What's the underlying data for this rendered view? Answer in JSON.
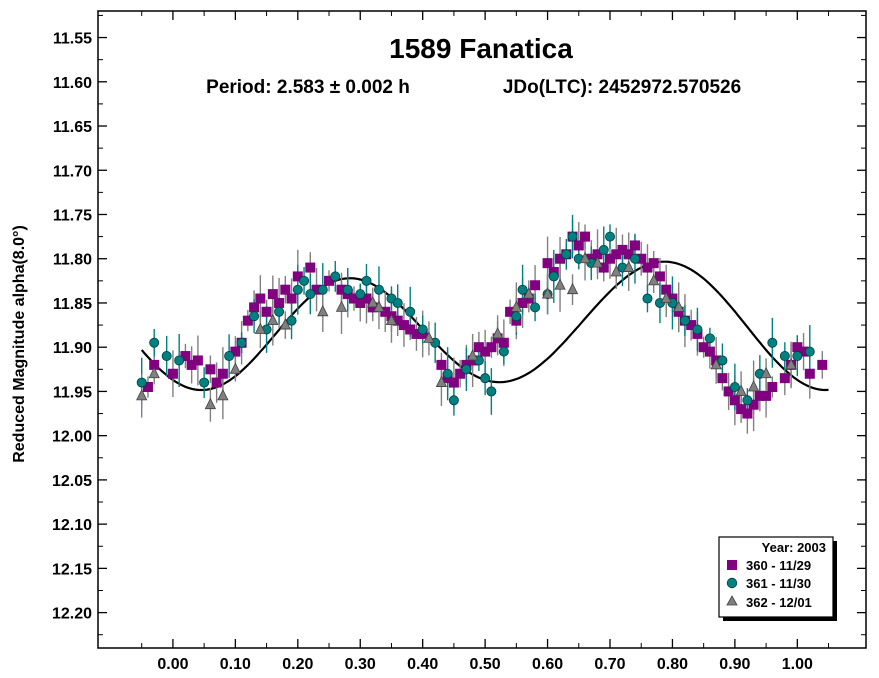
{
  "chart_data": {
    "type": "scatter",
    "title": "1589 Fanatica",
    "subtitle_period": "Period: 2.583 ± 0.002 h",
    "subtitle_epoch": "JDo(LTC): 2452972.570526",
    "xlabel": "",
    "ylabel": "Reduced Magnitude alpha(8.0°)",
    "xlim": [
      -0.12,
      1.11
    ],
    "ylim": [
      11.52,
      12.24
    ],
    "y_inverted": true,
    "x_ticks": [
      "0.00",
      "0.10",
      "0.20",
      "0.30",
      "0.40",
      "0.50",
      "0.60",
      "0.70",
      "0.80",
      "0.90",
      "1.00"
    ],
    "y_ticks": [
      "11.55",
      "11.60",
      "11.65",
      "11.70",
      "11.75",
      "11.80",
      "11.85",
      "11.90",
      "11.95",
      "12.00",
      "12.05",
      "12.10",
      "12.15",
      "12.20"
    ],
    "legend_title": "Year: 2003",
    "legend_position": "bottom-right",
    "fit_curve": {
      "mean": 11.878,
      "harmonics": [
        {
          "n": 1,
          "cos": 0.0,
          "sin": 0.012
        },
        {
          "n": 2,
          "cos": 0.059,
          "sin": 0.028
        },
        {
          "n": 3,
          "cos": 0.0,
          "sin": 0.003
        }
      ]
    },
    "series": [
      {
        "name": "360 - 11/29",
        "marker": "square",
        "color": "#800080",
        "error_color": "#808080",
        "points": [
          [
            -0.04,
            11.945
          ],
          [
            -0.03,
            11.92
          ],
          [
            0.0,
            11.93
          ],
          [
            0.02,
            11.91
          ],
          [
            0.03,
            11.92
          ],
          [
            0.04,
            11.915
          ],
          [
            0.06,
            11.925
          ],
          [
            0.07,
            11.94
          ],
          [
            0.08,
            11.93
          ],
          [
            0.1,
            11.905
          ],
          [
            0.11,
            11.895
          ],
          [
            0.12,
            11.87
          ],
          [
            0.13,
            11.855
          ],
          [
            0.14,
            11.845
          ],
          [
            0.15,
            11.86
          ],
          [
            0.16,
            11.84
          ],
          [
            0.17,
            11.85
          ],
          [
            0.18,
            11.835
          ],
          [
            0.19,
            11.845
          ],
          [
            0.2,
            11.82
          ],
          [
            0.22,
            11.81
          ],
          [
            0.23,
            11.835
          ],
          [
            0.25,
            11.825
          ],
          [
            0.27,
            11.835
          ],
          [
            0.28,
            11.84
          ],
          [
            0.29,
            11.845
          ],
          [
            0.3,
            11.85
          ],
          [
            0.31,
            11.845
          ],
          [
            0.32,
            11.855
          ],
          [
            0.34,
            11.86
          ],
          [
            0.35,
            11.865
          ],
          [
            0.36,
            11.87
          ],
          [
            0.37,
            11.875
          ],
          [
            0.38,
            11.88
          ],
          [
            0.39,
            11.885
          ],
          [
            0.4,
            11.885
          ],
          [
            0.43,
            11.92
          ],
          [
            0.44,
            11.935
          ],
          [
            0.45,
            11.94
          ],
          [
            0.46,
            11.93
          ],
          [
            0.47,
            11.92
          ],
          [
            0.48,
            11.915
          ],
          [
            0.49,
            11.9
          ],
          [
            0.5,
            11.905
          ],
          [
            0.51,
            11.9
          ],
          [
            0.52,
            11.89
          ],
          [
            0.53,
            11.895
          ],
          [
            0.54,
            11.86
          ],
          [
            0.55,
            11.87
          ],
          [
            0.56,
            11.85
          ],
          [
            0.57,
            11.845
          ],
          [
            0.58,
            11.83
          ],
          [
            0.6,
            11.805
          ],
          [
            0.61,
            11.815
          ],
          [
            0.62,
            11.8
          ],
          [
            0.63,
            11.795
          ],
          [
            0.64,
            11.775
          ],
          [
            0.65,
            11.785
          ],
          [
            0.66,
            11.775
          ],
          [
            0.67,
            11.8
          ],
          [
            0.68,
            11.795
          ],
          [
            0.69,
            11.81
          ],
          [
            0.7,
            11.8
          ],
          [
            0.71,
            11.795
          ],
          [
            0.72,
            11.79
          ],
          [
            0.73,
            11.795
          ],
          [
            0.74,
            11.785
          ],
          [
            0.75,
            11.8
          ],
          [
            0.76,
            11.81
          ],
          [
            0.77,
            11.805
          ],
          [
            0.78,
            11.82
          ],
          [
            0.79,
            11.835
          ],
          [
            0.8,
            11.845
          ],
          [
            0.81,
            11.86
          ],
          [
            0.82,
            11.87
          ],
          [
            0.83,
            11.875
          ],
          [
            0.84,
            11.885
          ],
          [
            0.85,
            11.9
          ],
          [
            0.86,
            11.905
          ],
          [
            0.87,
            11.915
          ],
          [
            0.88,
            11.935
          ],
          [
            0.89,
            11.95
          ],
          [
            0.9,
            11.96
          ],
          [
            0.91,
            11.97
          ],
          [
            0.92,
            11.975
          ],
          [
            0.93,
            11.965
          ],
          [
            0.94,
            11.955
          ],
          [
            0.95,
            11.955
          ],
          [
            0.96,
            11.945
          ],
          [
            0.98,
            11.935
          ],
          [
            0.99,
            11.92
          ],
          [
            1.0,
            11.9
          ],
          [
            1.01,
            11.905
          ],
          [
            1.02,
            11.93
          ],
          [
            1.04,
            11.92
          ]
        ]
      },
      {
        "name": "361 - 11/30",
        "marker": "circle",
        "color": "#008080",
        "error_color": "#008080",
        "points": [
          [
            -0.05,
            11.94
          ],
          [
            -0.03,
            11.895
          ],
          [
            -0.01,
            11.91
          ],
          [
            0.01,
            11.915
          ],
          [
            0.05,
            11.94
          ],
          [
            0.09,
            11.91
          ],
          [
            0.11,
            11.895
          ],
          [
            0.13,
            11.865
          ],
          [
            0.15,
            11.88
          ],
          [
            0.17,
            11.86
          ],
          [
            0.19,
            11.87
          ],
          [
            0.2,
            11.835
          ],
          [
            0.21,
            11.825
          ],
          [
            0.22,
            11.84
          ],
          [
            0.24,
            11.835
          ],
          [
            0.26,
            11.82
          ],
          [
            0.28,
            11.835
          ],
          [
            0.3,
            11.84
          ],
          [
            0.31,
            11.825
          ],
          [
            0.33,
            11.835
          ],
          [
            0.35,
            11.845
          ],
          [
            0.36,
            11.85
          ],
          [
            0.38,
            11.86
          ],
          [
            0.4,
            11.88
          ],
          [
            0.42,
            11.895
          ],
          [
            0.44,
            11.93
          ],
          [
            0.45,
            11.96
          ],
          [
            0.47,
            11.925
          ],
          [
            0.49,
            11.915
          ],
          [
            0.5,
            11.935
          ],
          [
            0.51,
            11.95
          ],
          [
            0.53,
            11.905
          ],
          [
            0.55,
            11.865
          ],
          [
            0.56,
            11.835
          ],
          [
            0.58,
            11.855
          ],
          [
            0.6,
            11.84
          ],
          [
            0.61,
            11.82
          ],
          [
            0.63,
            11.795
          ],
          [
            0.64,
            11.775
          ],
          [
            0.65,
            11.8
          ],
          [
            0.67,
            11.805
          ],
          [
            0.69,
            11.79
          ],
          [
            0.7,
            11.775
          ],
          [
            0.72,
            11.81
          ],
          [
            0.74,
            11.8
          ],
          [
            0.76,
            11.845
          ],
          [
            0.78,
            11.85
          ],
          [
            0.8,
            11.85
          ],
          [
            0.82,
            11.87
          ],
          [
            0.84,
            11.88
          ],
          [
            0.86,
            11.89
          ],
          [
            0.88,
            11.915
          ],
          [
            0.9,
            11.945
          ],
          [
            0.92,
            11.96
          ],
          [
            0.94,
            11.93
          ],
          [
            0.96,
            11.895
          ],
          [
            0.98,
            11.91
          ],
          [
            1.0,
            11.91
          ],
          [
            1.02,
            11.905
          ]
        ]
      },
      {
        "name": "362 - 12/01",
        "marker": "triangle",
        "color": "#808080",
        "error_color": "#808080",
        "points": [
          [
            -0.05,
            11.955
          ],
          [
            -0.03,
            11.93
          ],
          [
            0.06,
            11.965
          ],
          [
            0.08,
            11.955
          ],
          [
            0.1,
            11.925
          ],
          [
            0.14,
            11.88
          ],
          [
            0.16,
            11.87
          ],
          [
            0.18,
            11.875
          ],
          [
            0.24,
            11.86
          ],
          [
            0.27,
            11.855
          ],
          [
            0.32,
            11.85
          ],
          [
            0.33,
            11.855
          ],
          [
            0.35,
            11.87
          ],
          [
            0.41,
            11.89
          ],
          [
            0.43,
            11.94
          ],
          [
            0.48,
            11.91
          ],
          [
            0.52,
            11.885
          ],
          [
            0.55,
            11.855
          ],
          [
            0.57,
            11.84
          ],
          [
            0.6,
            11.84
          ],
          [
            0.62,
            11.83
          ],
          [
            0.64,
            11.835
          ],
          [
            0.66,
            11.8
          ],
          [
            0.68,
            11.805
          ],
          [
            0.71,
            11.815
          ],
          [
            0.73,
            11.81
          ],
          [
            0.77,
            11.825
          ],
          [
            0.79,
            11.845
          ],
          [
            0.81,
            11.855
          ],
          [
            0.87,
            11.92
          ],
          [
            0.91,
            11.95
          ],
          [
            0.93,
            11.945
          ],
          [
            0.95,
            11.93
          ],
          [
            0.99,
            11.92
          ]
        ]
      }
    ]
  }
}
